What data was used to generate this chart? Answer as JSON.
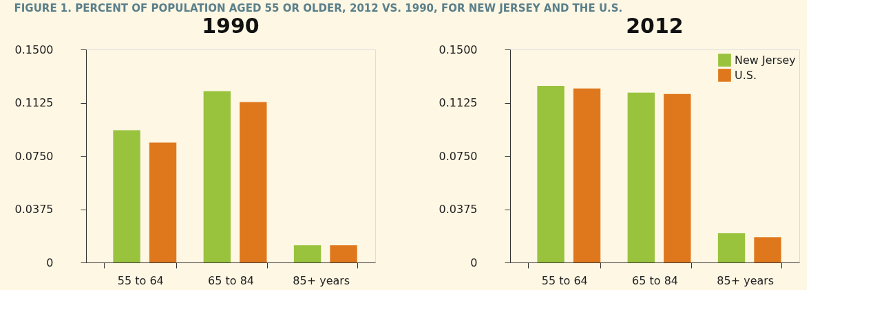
{
  "chart_data": [
    {
      "type": "bar",
      "title": "1990",
      "annotations": [
        "FIGURE 1. PERCENT OF POPULATION AGED 55 OR OLDER, 2012 VS. 1990, FOR NEW JERSEY AND THE U.S."
      ],
      "categories": [
        "55 to 64",
        "65 to 84",
        "85+ years"
      ],
      "series": [
        {
          "color": "#99c33d",
          "values": [
            0.0931,
            0.1206,
            0.0121
          ]
        },
        {
          "color": "#df781d",
          "values": [
            0.0844,
            0.113,
            0.0121
          ]
        }
      ],
      "ylim": [
        0,
        0.15
      ],
      "yticks": [
        0,
        {
          "value": 0.0375,
          "label": "0.0375"
        },
        {
          "value": 0.075,
          "label": "0.0750"
        },
        {
          "value": 0.1125,
          "label": "0.1125"
        },
        {
          "value": 0.15,
          "label": "0.1500"
        }
      ],
      "grid": false,
      "legend": false
    },
    {
      "type": "bar",
      "title": "2012",
      "categories": [
        "55 to 64",
        "65 to 84",
        "85+ years"
      ],
      "series": [
        {
          "name": "New Jersey",
          "color": "#99c33d",
          "values": [
            0.1244,
            0.1196,
            0.0207
          ]
        },
        {
          "name": "U.S.",
          "color": "#df781d",
          "values": [
            0.1225,
            0.1187,
            0.0178
          ]
        }
      ],
      "ylim": [
        0,
        0.15
      ],
      "yticks": [
        0,
        {
          "value": 0.0375,
          "label": "0.0375"
        },
        {
          "value": 0.075,
          "label": "0.0750"
        },
        {
          "value": 0.1125,
          "label": "0.1125"
        },
        {
          "value": 0.15,
          "label": "0.1500"
        }
      ],
      "grid": false,
      "legend": "top right"
    }
  ]
}
